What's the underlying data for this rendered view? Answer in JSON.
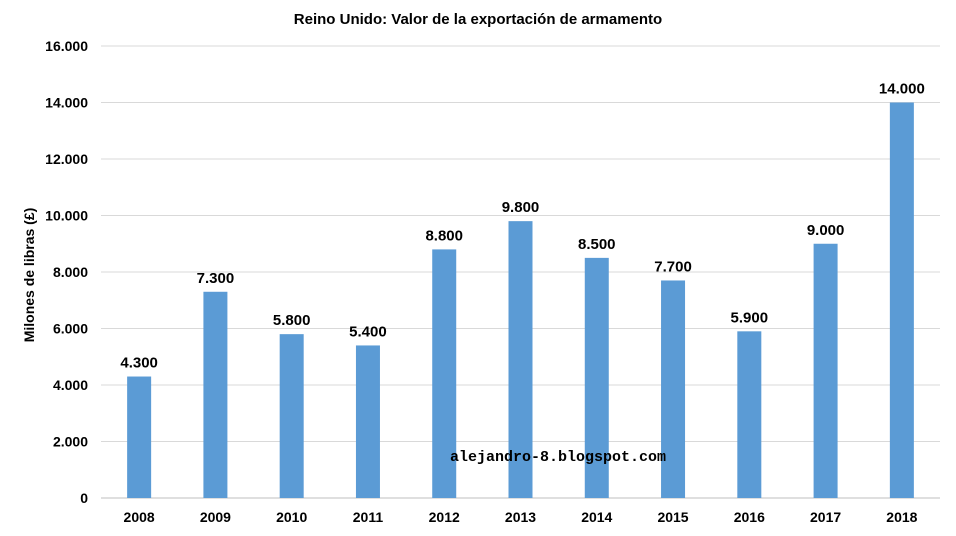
{
  "chart_data": {
    "type": "bar",
    "title": "Reino Unido: Valor de la exportación de armamento",
    "xlabel": "",
    "ylabel": "Milones de libras (£)",
    "categories": [
      "2008",
      "2009",
      "2010",
      "2011",
      "2012",
      "2013",
      "2014",
      "2015",
      "2016",
      "2017",
      "2018"
    ],
    "values": [
      4300,
      7300,
      5800,
      5400,
      8800,
      9800,
      8500,
      7700,
      5900,
      9000,
      14000
    ],
    "value_labels": [
      "4.300",
      "7.300",
      "5.800",
      "5.400",
      "8.800",
      "9.800",
      "8.500",
      "7.700",
      "5.900",
      "9.000",
      "14.000"
    ],
    "ylim": [
      0,
      16000
    ],
    "yticks": [
      0,
      2000,
      4000,
      6000,
      8000,
      10000,
      12000,
      14000,
      16000
    ],
    "ytick_labels": [
      "0",
      "2.000",
      "4.000",
      "6.000",
      "8.000",
      "10.000",
      "12.000",
      "14.000",
      "16.000"
    ],
    "grid": true,
    "legend": "none",
    "bar_color": "#5b9bd5",
    "watermark": "alejandro-8.blogspot.com"
  }
}
